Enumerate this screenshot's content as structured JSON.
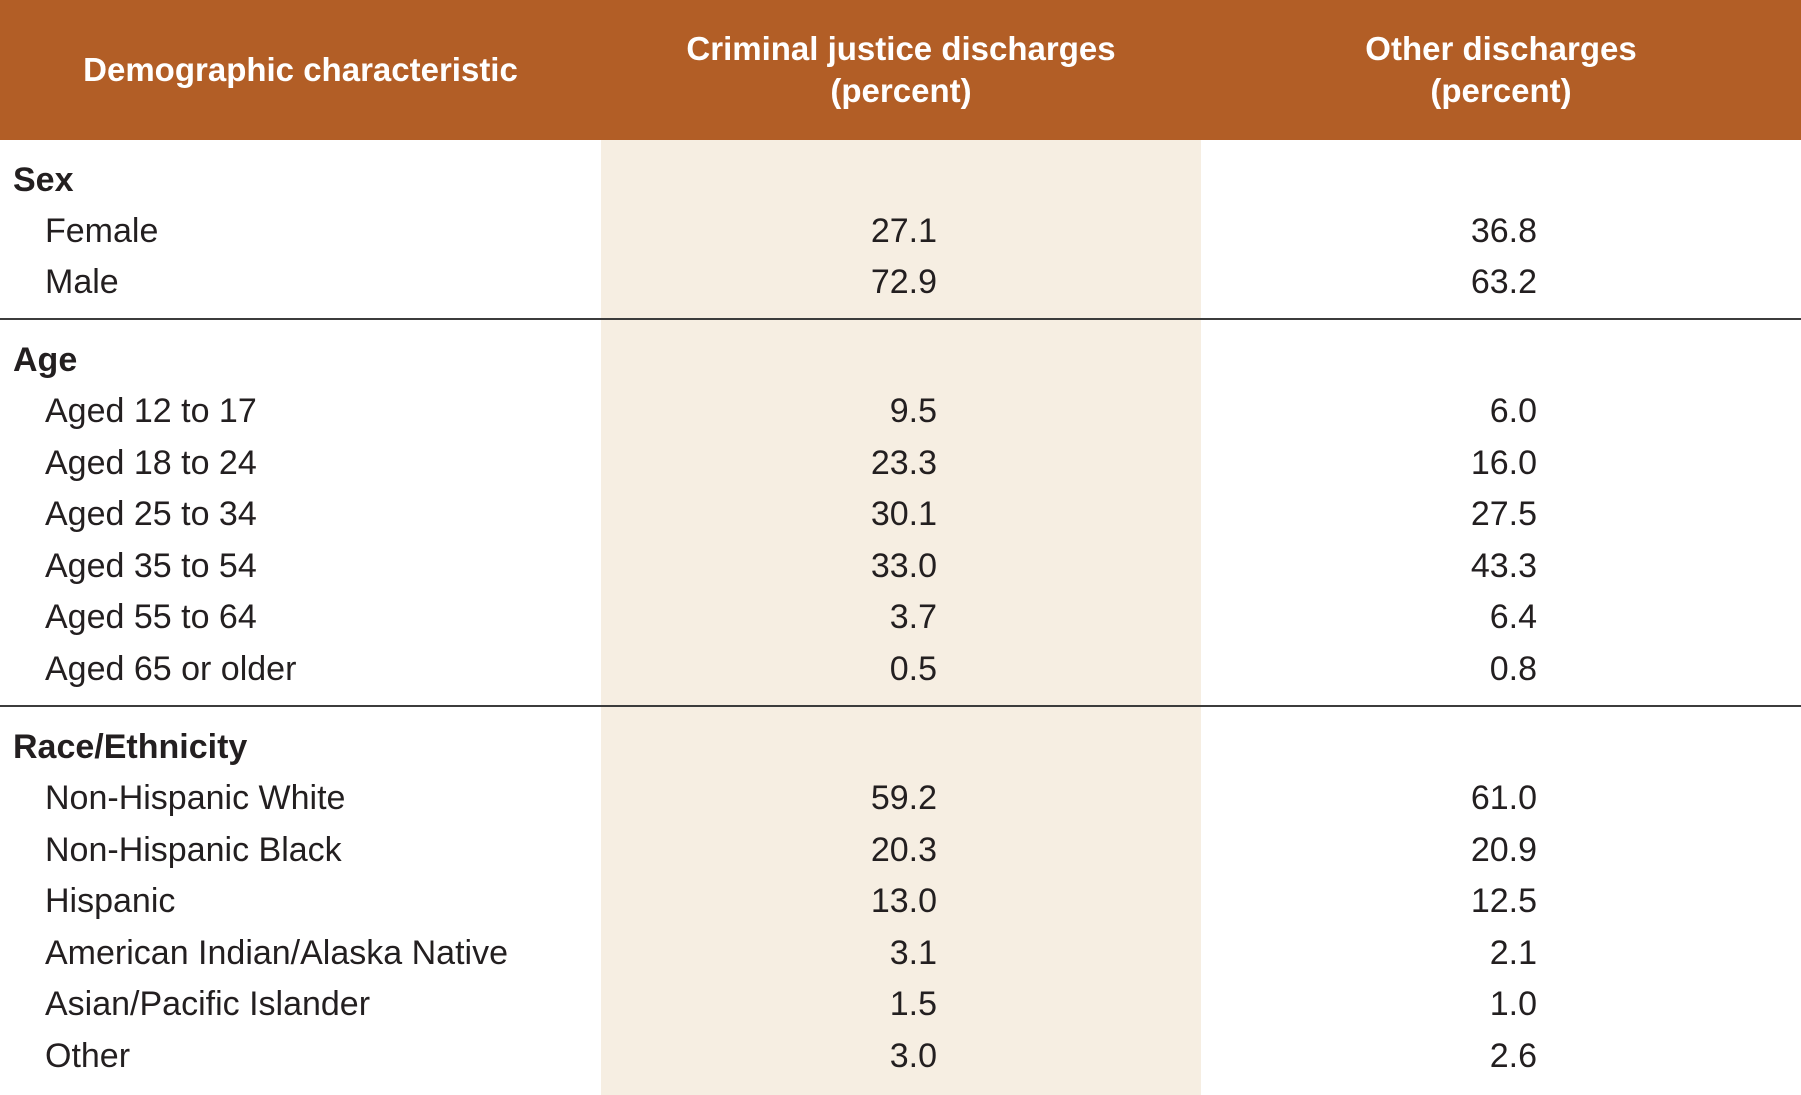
{
  "header": {
    "col1": "Demographic characteristic",
    "col2_line1": "Criminal justice discharges",
    "col2_line2": "(percent)",
    "col3_line1": "Other discharges",
    "col3_line2": "(percent)"
  },
  "colors": {
    "header_bg": "#b25e26",
    "header_text": "#ffffff",
    "shaded_column": "#f6eee2",
    "text": "#231f20"
  },
  "sections": [
    {
      "title": "Sex",
      "rows": [
        {
          "label": "Female",
          "cj": "27.1",
          "other": "36.8"
        },
        {
          "label": "Male",
          "cj": "72.9",
          "other": "63.2"
        }
      ]
    },
    {
      "title": "Age",
      "rows": [
        {
          "label": "Aged 12 to 17",
          "cj": "9.5",
          "other": "6.0"
        },
        {
          "label": "Aged 18 to 24",
          "cj": "23.3",
          "other": "16.0"
        },
        {
          "label": "Aged 25 to 34",
          "cj": "30.1",
          "other": "27.5"
        },
        {
          "label": "Aged 35 to 54",
          "cj": "33.0",
          "other": "43.3"
        },
        {
          "label": "Aged 55 to 64",
          "cj": "3.7",
          "other": "6.4"
        },
        {
          "label": "Aged 65 or older",
          "cj": "0.5",
          "other": "0.8"
        }
      ]
    },
    {
      "title": "Race/Ethnicity",
      "rows": [
        {
          "label": "Non-Hispanic White",
          "cj": "59.2",
          "other": "61.0"
        },
        {
          "label": "Non-Hispanic Black",
          "cj": "20.3",
          "other": "20.9"
        },
        {
          "label": "Hispanic",
          "cj": "13.0",
          "other": "12.5"
        },
        {
          "label": "American Indian/Alaska Native",
          "cj": "3.1",
          "other": "2.1"
        },
        {
          "label": "Asian/Pacific Islander",
          "cj": "1.5",
          "other": "1.0"
        },
        {
          "label": "Other",
          "cj": "3.0",
          "other": "2.6"
        }
      ]
    }
  ]
}
